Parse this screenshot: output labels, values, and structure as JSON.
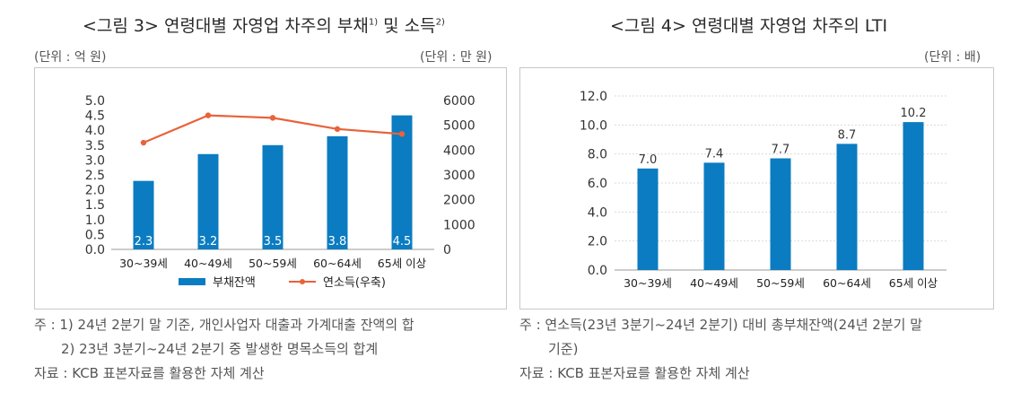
{
  "figures": [
    {
      "title": "<그림 3> 연령대별 자영업 차주의 부채",
      "title_sup1": "1)",
      "title_mid": " 및 소득",
      "title_sup2": "2)",
      "unit_left": "(단위 : 억 원)",
      "unit_right": "(단위 : 만 원)",
      "notes": [
        "주 : 1) 24년 2분기 말 기준, 개인사업자 대출과 가계대출 잔액의 합",
        "2) 23년 3분기~24년 2분기 중 발생한 명목소득의 합계",
        "자료 : KCB 표본자료를 활용한 자체 계산"
      ]
    },
    {
      "title": "<그림 4> 연령대별 자영업 차주의 LTI",
      "unit_right": "(단위 : 배)",
      "notes": [
        "주 : 연소득(23년 3분기~24년 2분기) 대비 총부채잔액(24년 2분기 말",
        "기준)",
        "자료 : KCB 표본자료를 활용한 자체 계산"
      ]
    }
  ],
  "chart_data": [
    {
      "type": "bar",
      "categories": [
        "30~39세",
        "40~49세",
        "50~59세",
        "60~64세",
        "65세 이상"
      ],
      "series": [
        {
          "name": "부채잔액",
          "type": "bar",
          "axis": "left",
          "values": [
            2.3,
            3.2,
            3.5,
            3.8,
            4.5
          ],
          "labels": [
            "2.3",
            "3.2",
            "3.5",
            "3.8",
            "4.5"
          ],
          "color": "#0b7cc1"
        },
        {
          "name": "연소득(우축)",
          "type": "line",
          "axis": "right",
          "values": [
            4300,
            5400,
            5300,
            4850,
            4650
          ],
          "color": "#e8623a"
        }
      ],
      "yleft": {
        "min": 0,
        "max": 5.0,
        "ticks": [
          "0.0",
          "0.5",
          "1.0",
          "1.5",
          "2.0",
          "2.5",
          "3.0",
          "3.5",
          "4.0",
          "4.5",
          "5.0"
        ]
      },
      "yright": {
        "min": 0,
        "max": 6000,
        "ticks": [
          "0",
          "1000",
          "2000",
          "3000",
          "4000",
          "5000",
          "6000"
        ]
      },
      "legend": "bottom"
    },
    {
      "type": "bar",
      "categories": [
        "30~39세",
        "40~49세",
        "50~59세",
        "60~64세",
        "65세 이상"
      ],
      "series": [
        {
          "name": "LTI",
          "values": [
            7.0,
            7.4,
            7.7,
            8.7,
            10.2
          ],
          "labels": [
            "7.0",
            "7.4",
            "7.7",
            "8.7",
            "10.2"
          ],
          "color": "#0b7cc1"
        }
      ],
      "ylim": [
        0,
        12
      ],
      "yticks": [
        "0.0",
        "2.0",
        "4.0",
        "6.0",
        "8.0",
        "10.0",
        "12.0"
      ],
      "grid": true
    }
  ]
}
